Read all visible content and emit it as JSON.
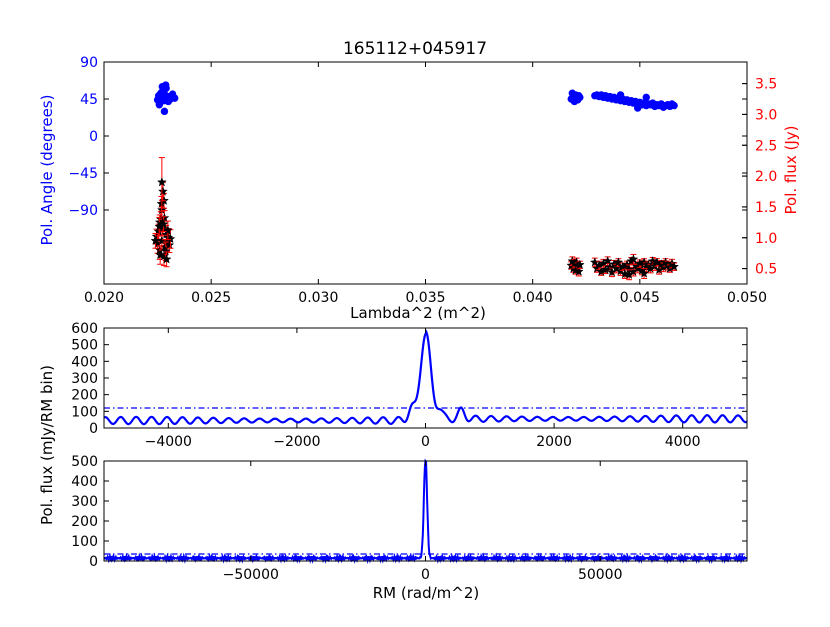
{
  "colors": {
    "angle": "#0000ff",
    "flux": "#ff0000",
    "marker_fill": "#000000",
    "spectrum": "#0000ff",
    "axis": "#000000",
    "background": "#ffffff"
  },
  "chart_data": [
    {
      "type": "scatter",
      "title": "165112+045917",
      "xlabel": "Lambda^2 (m^2)",
      "ylabel": "Pol. Angle (degrees)",
      "ylabel_right": "Pol. flux (Jy)",
      "xlim": [
        0.02,
        0.05
      ],
      "ylim": [
        -180,
        90
      ],
      "ylim_right": [
        0.25,
        3.85
      ],
      "x_ticks": [
        0.02,
        0.025,
        0.03,
        0.035,
        0.04,
        0.045,
        0.05
      ],
      "x_tick_labels": [
        "0.020",
        "0.025",
        "0.030",
        "0.035",
        "0.040",
        "0.045",
        "0.050"
      ],
      "y_ticks": [
        90,
        45,
        0,
        -45,
        -90
      ],
      "y_tick_labels": [
        "90",
        "45",
        "0",
        "−45",
        "−90"
      ],
      "y_ticks_right": [
        0.5,
        1.0,
        1.5,
        2.0,
        2.5,
        3.0,
        3.5
      ],
      "y_tick_labels_right": [
        "0.5",
        "1.0",
        "1.5",
        "2.0",
        "2.5",
        "3.0",
        "3.5"
      ],
      "series": [
        {
          "axis": "left",
          "marker": "circle",
          "points": [
            [
              0.0225,
              44
            ],
            [
              0.02255,
              49
            ],
            [
              0.0226,
              40
            ],
            [
              0.02265,
              52
            ],
            [
              0.0227,
              46
            ],
            [
              0.02275,
              55
            ],
            [
              0.0228,
              43
            ],
            [
              0.02285,
              50
            ],
            [
              0.0229,
              58
            ],
            [
              0.02295,
              47
            ],
            [
              0.023,
              42
            ],
            [
              0.02305,
              48
            ],
            [
              0.0231,
              45
            ],
            [
              0.02258,
              38
            ],
            [
              0.02272,
              60
            ],
            [
              0.02282,
              30
            ],
            [
              0.0233,
              46
            ],
            [
              0.0232,
              51
            ],
            [
              0.02262,
              47
            ],
            [
              0.02288,
              62
            ],
            [
              0.0418,
              45
            ],
            [
              0.04185,
              52
            ],
            [
              0.0419,
              48
            ],
            [
              0.04195,
              42
            ],
            [
              0.042,
              50
            ],
            [
              0.04205,
              46
            ],
            [
              0.0421,
              44
            ],
            [
              0.04215,
              49
            ],
            [
              0.0422,
              47
            ],
            [
              0.0429,
              49
            ],
            [
              0.043,
              50
            ],
            [
              0.0431,
              48
            ],
            [
              0.0432,
              50
            ],
            [
              0.0433,
              47
            ],
            [
              0.0434,
              49
            ],
            [
              0.0435,
              46
            ],
            [
              0.0436,
              48
            ],
            [
              0.0437,
              45
            ],
            [
              0.0438,
              47
            ],
            [
              0.0439,
              44
            ],
            [
              0.044,
              46
            ],
            [
              0.0441,
              43
            ],
            [
              0.0442,
              45
            ],
            [
              0.0443,
              42
            ],
            [
              0.0444,
              44
            ],
            [
              0.0445,
              41
            ],
            [
              0.0446,
              43
            ],
            [
              0.0447,
              40
            ],
            [
              0.0448,
              42
            ],
            [
              0.0449,
              39
            ],
            [
              0.045,
              41
            ],
            [
              0.0451,
              38
            ],
            [
              0.0452,
              40
            ],
            [
              0.0453,
              37
            ],
            [
              0.0454,
              39
            ],
            [
              0.0455,
              38
            ],
            [
              0.0456,
              40
            ],
            [
              0.0457,
              36
            ],
            [
              0.0458,
              38
            ],
            [
              0.0459,
              37
            ],
            [
              0.046,
              39
            ],
            [
              0.0461,
              35
            ],
            [
              0.0462,
              37
            ],
            [
              0.0463,
              38
            ],
            [
              0.0464,
              36
            ],
            [
              0.0465,
              39
            ],
            [
              0.0466,
              37
            ],
            [
              0.0453,
              47
            ],
            [
              0.0449,
              34
            ],
            [
              0.0441,
              50
            ]
          ]
        },
        {
          "axis": "right",
          "marker": "star",
          "points": [
            [
              0.02245,
              1.02,
              0.12
            ],
            [
              0.0225,
              0.9,
              0.15
            ],
            [
              0.02255,
              1.1,
              0.12
            ],
            [
              0.0226,
              0.8,
              0.15
            ],
            [
              0.02265,
              1.3,
              0.12
            ],
            [
              0.0227,
              0.95,
              0.15
            ],
            [
              0.02275,
              1.15,
              0.12
            ],
            [
              0.0228,
              0.7,
              0.15
            ],
            [
              0.02285,
              0.85,
              0.12
            ],
            [
              0.0229,
              1.05,
              0.15
            ],
            [
              0.02295,
              0.92,
              0.12
            ],
            [
              0.023,
              1.0,
              0.15
            ],
            [
              0.02305,
              0.88,
              0.12
            ],
            [
              0.0231,
              0.98,
              0.15
            ],
            [
              0.0226,
              1.25,
              0.12
            ],
            [
              0.0227,
              1.45,
              0.15
            ],
            [
              0.0228,
              1.6,
              0.12
            ],
            [
              0.02275,
              1.75,
              0.15
            ],
            [
              0.02268,
              1.55,
              0.12
            ],
            [
              0.0227,
              1.9,
              0.4
            ],
            [
              0.02258,
              1.18,
              0.15
            ],
            [
              0.02282,
              1.32,
              0.12
            ],
            [
              0.02288,
              0.78,
              0.15
            ],
            [
              0.02292,
              0.65,
              0.12
            ],
            [
              0.02298,
              1.12,
              0.15
            ],
            [
              0.0224,
              0.95,
              0.12
            ],
            [
              0.02262,
              0.72,
              0.15
            ],
            [
              0.02278,
              1.22,
              0.12
            ],
            [
              0.0418,
              0.55,
              0.06
            ],
            [
              0.04185,
              0.62,
              0.07
            ],
            [
              0.0419,
              0.5,
              0.06
            ],
            [
              0.04195,
              0.58,
              0.07
            ],
            [
              0.042,
              0.47,
              0.06
            ],
            [
              0.04205,
              0.6,
              0.07
            ],
            [
              0.0421,
              0.53,
              0.06
            ],
            [
              0.04215,
              0.45,
              0.07
            ],
            [
              0.0422,
              0.56,
              0.06
            ],
            [
              0.0429,
              0.6,
              0.07
            ],
            [
              0.043,
              0.5,
              0.06
            ],
            [
              0.0431,
              0.55,
              0.07
            ],
            [
              0.0432,
              0.45,
              0.06
            ],
            [
              0.0433,
              0.58,
              0.07
            ],
            [
              0.0434,
              0.48,
              0.06
            ],
            [
              0.0435,
              0.62,
              0.07
            ],
            [
              0.0436,
              0.52,
              0.06
            ],
            [
              0.0437,
              0.44,
              0.07
            ],
            [
              0.0438,
              0.57,
              0.06
            ],
            [
              0.0439,
              0.5,
              0.07
            ],
            [
              0.044,
              0.6,
              0.06
            ],
            [
              0.0441,
              0.46,
              0.07
            ],
            [
              0.0442,
              0.53,
              0.06
            ],
            [
              0.0443,
              0.41,
              0.07
            ],
            [
              0.0444,
              0.56,
              0.06
            ],
            [
              0.0445,
              0.49,
              0.07
            ],
            [
              0.0446,
              0.62,
              0.06
            ],
            [
              0.0447,
              0.45,
              0.07
            ],
            [
              0.0448,
              0.55,
              0.06
            ],
            [
              0.0449,
              0.5,
              0.07
            ],
            [
              0.045,
              0.58,
              0.06
            ],
            [
              0.0451,
              0.47,
              0.07
            ],
            [
              0.0452,
              0.6,
              0.06
            ],
            [
              0.0453,
              0.52,
              0.07
            ],
            [
              0.0454,
              0.56,
              0.06
            ],
            [
              0.0455,
              0.5,
              0.07
            ],
            [
              0.0456,
              0.62,
              0.06
            ],
            [
              0.0457,
              0.54,
              0.07
            ],
            [
              0.0458,
              0.6,
              0.06
            ],
            [
              0.0459,
              0.48,
              0.07
            ],
            [
              0.046,
              0.57,
              0.06
            ],
            [
              0.0461,
              0.52,
              0.07
            ],
            [
              0.0462,
              0.6,
              0.06
            ],
            [
              0.0463,
              0.55,
              0.07
            ],
            [
              0.0464,
              0.5,
              0.06
            ],
            [
              0.0465,
              0.58,
              0.07
            ],
            [
              0.0466,
              0.53,
              0.06
            ],
            [
              0.0445,
              0.4,
              0.08
            ],
            [
              0.0447,
              0.65,
              0.08
            ],
            [
              0.0452,
              0.42,
              0.08
            ]
          ]
        }
      ]
    },
    {
      "type": "line",
      "xlabel": "",
      "ylabel": "Pol. flux (mJy/RM bin)",
      "xlim": [
        -5000,
        5000
      ],
      "ylim": [
        0,
        600
      ],
      "x_ticks": [
        -4000,
        -2000,
        0,
        2000,
        4000
      ],
      "x_tick_labels": [
        "−4000",
        "−2000",
        "0",
        "2000",
        "4000"
      ],
      "y_ticks": [
        0,
        100,
        200,
        300,
        400,
        500,
        600
      ],
      "y_tick_labels": [
        "0",
        "100",
        "200",
        "300",
        "400",
        "500",
        "600"
      ],
      "series": [
        {
          "style": "solid",
          "peak": {
            "x": 0,
            "y": 520,
            "halfwidth": 110
          },
          "sidelobe_level": 45,
          "sidelobe_amplitude": 22,
          "sidelobe_period": 240,
          "near_sidelobes": [
            [
              -220,
              130
            ],
            [
              210,
              110
            ],
            [
              560,
              90
            ]
          ]
        },
        {
          "style": "dashdot",
          "threshold": 120
        }
      ]
    },
    {
      "type": "line",
      "xlabel": "RM (rad/m^2)",
      "ylabel": "",
      "xlim": [
        -92000,
        92000
      ],
      "ylim": [
        0,
        500
      ],
      "x_ticks": [
        -50000,
        0,
        50000
      ],
      "x_tick_labels": [
        "−50000",
        "0",
        "50000"
      ],
      "y_ticks": [
        0,
        100,
        200,
        300,
        400,
        500
      ],
      "y_tick_labels": [
        "0",
        "100",
        "200",
        "300",
        "400",
        "500"
      ],
      "series": [
        {
          "style": "solid",
          "peak": {
            "x": 0,
            "y": 500,
            "halfwidth": 650
          },
          "noise_level": 14,
          "noise_amplitude": 10
        },
        {
          "style": "dashdot",
          "threshold": 35
        }
      ]
    }
  ]
}
